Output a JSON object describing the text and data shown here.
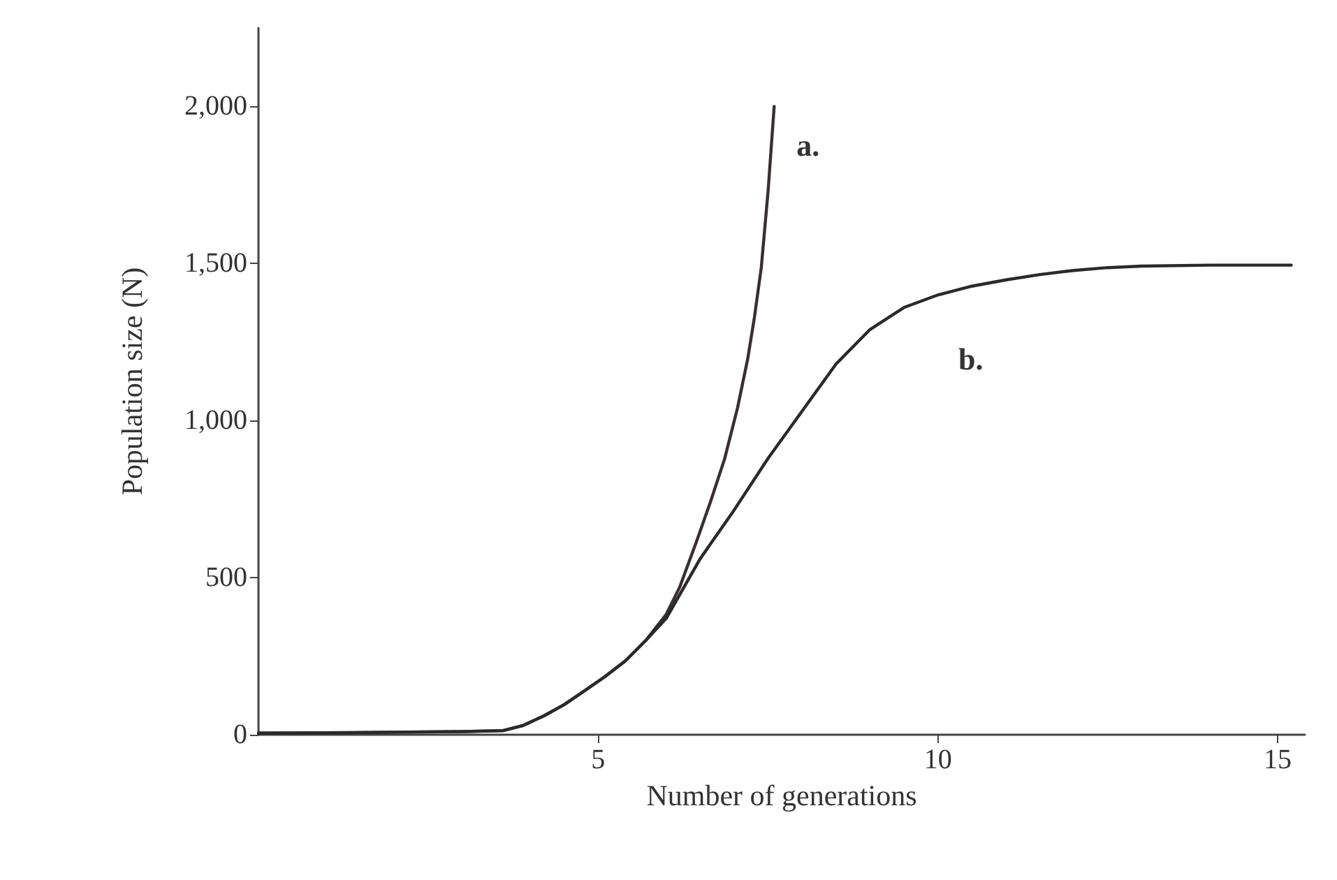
{
  "chart_data": {
    "type": "line",
    "xlabel": "Number of generations",
    "ylabel": "Population size (N)",
    "xlim": [
      0,
      15.4
    ],
    "xticks": [
      5,
      10,
      15
    ],
    "ylim": [
      0,
      2250
    ],
    "yticks": [
      0,
      500,
      {
        "value": 1000,
        "label": "1,000"
      },
      {
        "value": 1500,
        "label": "1,500"
      },
      {
        "value": 2000,
        "label": "2,000"
      }
    ],
    "series": [
      {
        "color": "#3a2e2e",
        "x": [
          0,
          1,
          2,
          3,
          3.6,
          3.9,
          4.2,
          4.5,
          4.8,
          5.1,
          5.4,
          5.7,
          6.0,
          6.2,
          6.45,
          6.65,
          6.86,
          7.05,
          7.2,
          7.3,
          7.4,
          7.5,
          7.59
        ],
        "values": [
          5,
          6,
          8,
          10,
          13,
          30,
          60,
          96,
          140,
          185,
          235,
          300,
          383,
          470,
          617,
          740,
          878,
          1040,
          1196,
          1330,
          1487,
          1730,
          2000
        ]
      },
      {
        "color": "#2a2a2a",
        "x": [
          0,
          1,
          2,
          3,
          3.6,
          3.9,
          4.2,
          4.5,
          4.8,
          5.1,
          5.4,
          5.7,
          6.0,
          6.5,
          7.0,
          7.5,
          8.0,
          8.5,
          9.0,
          9.5,
          10.0,
          10.5,
          11.0,
          11.5,
          12.0,
          12.5,
          13.0,
          14.0,
          15.2
        ],
        "values": [
          5,
          6,
          8,
          10,
          13,
          30,
          60,
          96,
          140,
          185,
          235,
          300,
          370,
          560,
          715,
          880,
          1030,
          1180,
          1290,
          1360,
          1400,
          1428,
          1448,
          1465,
          1478,
          1487,
          1492,
          1495,
          1495
        ]
      }
    ],
    "annotations": [
      "a.",
      "b."
    ],
    "grid": false,
    "marker": "none",
    "line_style": "solid"
  }
}
